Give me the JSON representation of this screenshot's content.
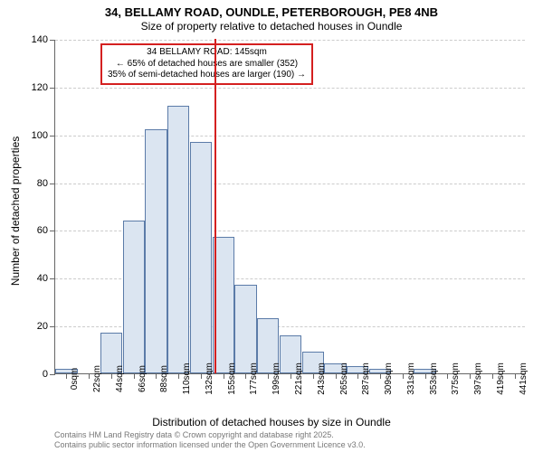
{
  "title": "34, BELLAMY ROAD, OUNDLE, PETERBOROUGH, PE8 4NB",
  "subtitle": "Size of property relative to detached houses in Oundle",
  "y_axis_title": "Number of detached properties",
  "x_axis_title": "Distribution of detached houses by size in Oundle",
  "footer_line1": "Contains HM Land Registry data © Crown copyright and database right 2025.",
  "footer_line2": "Contains public sector information licensed under the Open Government Licence v3.0.",
  "annotation": {
    "line1": "34 BELLAMY ROAD: 145sqm",
    "line2": "← 65% of detached houses are smaller (352)",
    "line3": "35% of semi-detached houses are larger (190) →"
  },
  "chart": {
    "type": "histogram",
    "bar_fill": "#dbe5f1",
    "bar_stroke": "#5b7ba8",
    "grid_color": "#cccccc",
    "reference_color": "#d42020",
    "background_color": "#ffffff",
    "ylim": [
      0,
      140
    ],
    "ytick_step": 20,
    "x_categories": [
      "0sqm",
      "22sqm",
      "44sqm",
      "66sqm",
      "88sqm",
      "110sqm",
      "132sqm",
      "155sqm",
      "177sqm",
      "199sqm",
      "221sqm",
      "243sqm",
      "265sqm",
      "287sqm",
      "309sqm",
      "331sqm",
      "353sqm",
      "375sqm",
      "397sqm",
      "419sqm",
      "441sqm"
    ],
    "values": [
      2,
      0,
      17,
      64,
      102,
      112,
      97,
      57,
      37,
      23,
      16,
      9,
      4,
      3,
      2,
      0,
      2,
      0,
      0,
      0,
      0
    ],
    "reference_index": 6.6,
    "title_fontsize": 13,
    "label_fontsize": 12,
    "tick_fontsize": 10
  }
}
